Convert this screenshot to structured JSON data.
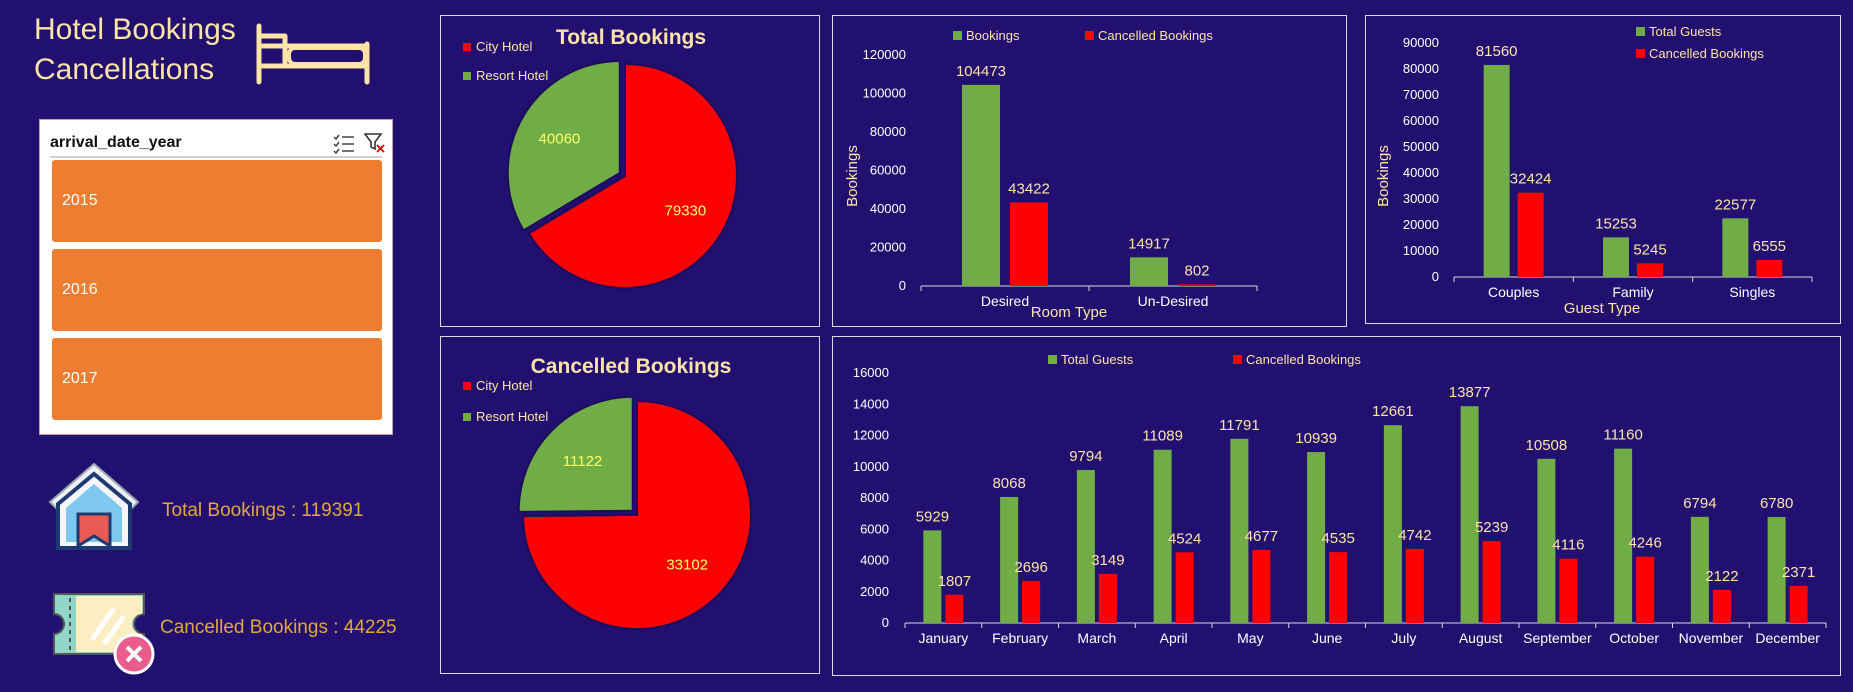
{
  "dashboard": {
    "title_line1": "Hotel Bookings",
    "title_line2": "Cancellations"
  },
  "slicer": {
    "title": "arrival_date_year",
    "items": [
      "2015",
      "2016",
      "2017"
    ]
  },
  "kpis": {
    "total_bookings": "Total Bookings : 119391",
    "cancelled_bookings": "Cancelled Bookings : 44225"
  },
  "colors": {
    "background": "#221070",
    "green": "#70ad47",
    "red": "#ff0000",
    "label": "#fce3a6",
    "pie_label": "#ffff66",
    "slicer_item": "#ed7d31"
  },
  "chart_data": [
    {
      "id": "total-bookings",
      "type": "pie",
      "title": "Total Bookings",
      "labels": [
        "City Hotel",
        "Resort Hotel"
      ],
      "values": [
        79330,
        40060
      ],
      "legend": "top-left"
    },
    {
      "id": "room-type",
      "type": "bar",
      "categories": [
        "Desired",
        "Un-Desired"
      ],
      "series": [
        {
          "name": "Bookings",
          "values": [
            104473,
            14917
          ]
        },
        {
          "name": "Cancelled Bookings",
          "values": [
            43422,
            802
          ]
        }
      ],
      "xlabel": "Room Type",
      "ylabel": "Bookings",
      "ylim": [
        0,
        120000
      ],
      "yticks": [
        0,
        20000,
        40000,
        60000,
        80000,
        100000,
        120000
      ],
      "legend": "top"
    },
    {
      "id": "guest-type",
      "type": "bar",
      "categories": [
        "Couples",
        "Family",
        "Singles"
      ],
      "series": [
        {
          "name": "Total Guests",
          "values": [
            81560,
            15253,
            22577
          ]
        },
        {
          "name": "Cancelled Bookings",
          "values": [
            32424,
            5245,
            6555
          ]
        }
      ],
      "xlabel": "Guest Type",
      "ylabel": "Bookings",
      "ylim": [
        0,
        90000
      ],
      "yticks": [
        0,
        10000,
        20000,
        30000,
        40000,
        50000,
        60000,
        70000,
        80000,
        90000
      ],
      "legend": "top-right"
    },
    {
      "id": "cancelled-bookings",
      "type": "pie",
      "title": "Cancelled Bookings",
      "labels": [
        "City Hotel",
        "Resort Hotel"
      ],
      "values": [
        33102,
        11122
      ],
      "legend": "top-left"
    },
    {
      "id": "monthly",
      "type": "bar",
      "categories": [
        "January",
        "February",
        "March",
        "April",
        "May",
        "June",
        "July",
        "August",
        "September",
        "October",
        "November",
        "December"
      ],
      "series": [
        {
          "name": "Total Guests",
          "values": [
            5929,
            8068,
            9794,
            11089,
            11791,
            10939,
            12661,
            13877,
            10508,
            11160,
            6794,
            6780
          ]
        },
        {
          "name": "Cancelled Bookings",
          "values": [
            1807,
            2696,
            3149,
            4524,
            4677,
            4535,
            4742,
            5239,
            4116,
            4246,
            2122,
            2371
          ]
        }
      ],
      "ylim": [
        0,
        16000
      ],
      "yticks": [
        0,
        2000,
        4000,
        6000,
        8000,
        10000,
        12000,
        14000,
        16000
      ],
      "legend": "top"
    }
  ]
}
